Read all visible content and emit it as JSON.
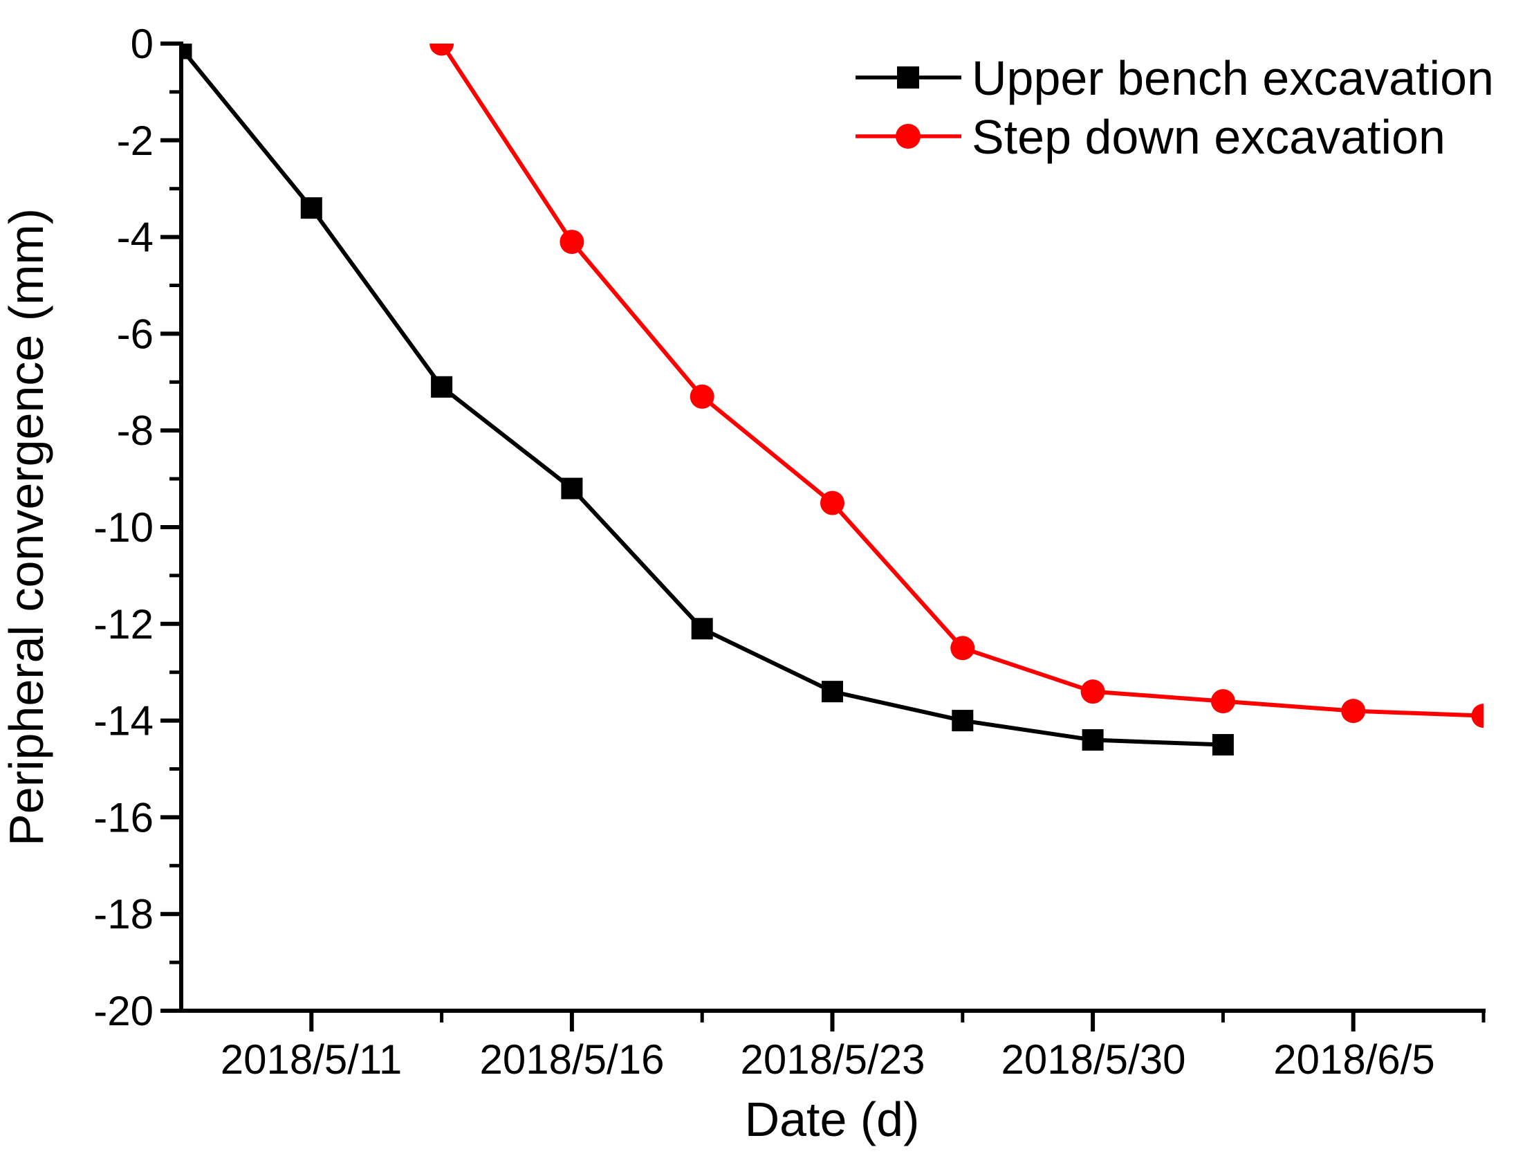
{
  "figure": {
    "background": "#ffffff",
    "axis_color": "#000000"
  },
  "chart_data": {
    "type": "line",
    "title": "",
    "xlabel": "Date (d)",
    "ylabel": "Peripheral convergence (mm)",
    "grid": false,
    "legend_position": "top-right-inside",
    "x_index_range": [
      0,
      10
    ],
    "x_major_tick_indices": [
      1,
      3,
      5,
      7,
      9
    ],
    "x_minor_tick_indices": [
      2,
      4,
      6,
      8,
      10
    ],
    "x_tick_labels": [
      "2018/5/11",
      "2018/5/16",
      "2018/5/23",
      "2018/5/30",
      "2018/6/5"
    ],
    "ylim": [
      -20,
      0
    ],
    "y_major_step": 2,
    "y_minor_step": 1,
    "y_tick_labels": [
      "0",
      "-2",
      "-4",
      "-6",
      "-8",
      "-10",
      "-12",
      "-14",
      "-16",
      "-18",
      "-20"
    ],
    "series": [
      {
        "name": "Upper bench excavation",
        "color": "#000000",
        "marker": "square",
        "x": [
          0,
          1,
          2,
          3,
          4,
          5,
          6,
          7,
          8
        ],
        "values": [
          -0.1,
          -3.4,
          -7.1,
          -9.2,
          -12.1,
          -13.4,
          -14.0,
          -14.4,
          -14.5
        ]
      },
      {
        "name": "Step down excavation",
        "color": "#FF0000",
        "marker": "circle",
        "x": [
          2,
          3,
          4,
          5,
          6,
          7,
          8,
          9,
          10
        ],
        "values": [
          0,
          -4.1,
          -7.3,
          -9.5,
          -12.5,
          -13.4,
          -13.6,
          -13.8,
          -13.9
        ]
      }
    ]
  }
}
